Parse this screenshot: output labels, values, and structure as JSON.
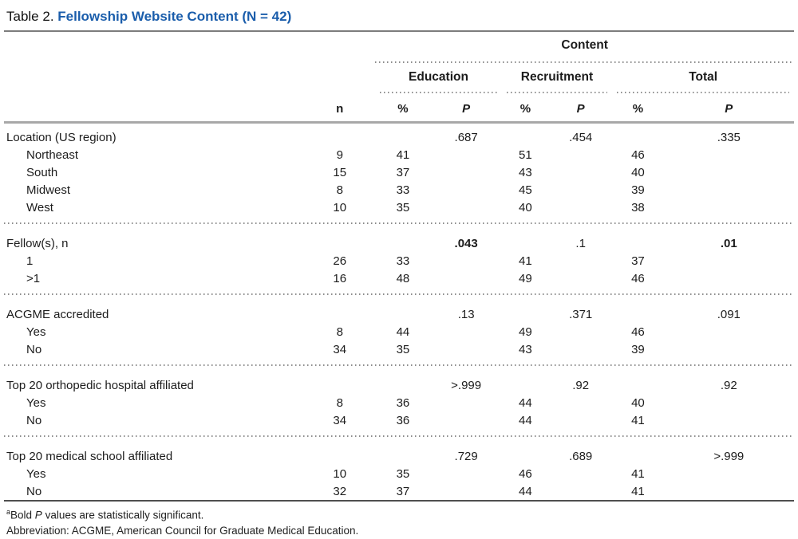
{
  "title": {
    "prefix": "Table 2. ",
    "main": "Fellowship Website Content (N = 42)",
    "accent_color": "#1a5dab"
  },
  "header": {
    "content_label": "Content",
    "group_labels": [
      "Education",
      "Recruitment",
      "Total"
    ],
    "col_n": "n",
    "col_pct": "%",
    "col_p": "P"
  },
  "sections": [
    {
      "label": "Location (US region)",
      "p_values": {
        "education": ".687",
        "recruitment": ".454",
        "total": ".335"
      },
      "p_bold": {
        "education": false,
        "recruitment": false,
        "total": false
      },
      "rows": [
        {
          "label": "Northeast",
          "n": "9",
          "education_pct": "41",
          "recruitment_pct": "51",
          "total_pct": "46"
        },
        {
          "label": "South",
          "n": "15",
          "education_pct": "37",
          "recruitment_pct": "43",
          "total_pct": "40"
        },
        {
          "label": "Midwest",
          "n": "8",
          "education_pct": "33",
          "recruitment_pct": "45",
          "total_pct": "39"
        },
        {
          "label": "West",
          "n": "10",
          "education_pct": "35",
          "recruitment_pct": "40",
          "total_pct": "38"
        }
      ]
    },
    {
      "label": "Fellow(s), n",
      "p_values": {
        "education": ".043",
        "recruitment": ".1",
        "total": ".01"
      },
      "p_bold": {
        "education": true,
        "recruitment": false,
        "total": true
      },
      "rows": [
        {
          "label": "1",
          "n": "26",
          "education_pct": "33",
          "recruitment_pct": "41",
          "total_pct": "37"
        },
        {
          "label": ">1",
          "n": "16",
          "education_pct": "48",
          "recruitment_pct": "49",
          "total_pct": "46"
        }
      ]
    },
    {
      "label": "ACGME accredited",
      "p_values": {
        "education": ".13",
        "recruitment": ".371",
        "total": ".091"
      },
      "p_bold": {
        "education": false,
        "recruitment": false,
        "total": false
      },
      "rows": [
        {
          "label": "Yes",
          "n": "8",
          "education_pct": "44",
          "recruitment_pct": "49",
          "total_pct": "46"
        },
        {
          "label": "No",
          "n": "34",
          "education_pct": "35",
          "recruitment_pct": "43",
          "total_pct": "39"
        }
      ]
    },
    {
      "label": "Top 20 orthopedic hospital affiliated",
      "p_values": {
        "education": ">.999",
        "recruitment": ".92",
        "total": ".92"
      },
      "p_bold": {
        "education": false,
        "recruitment": false,
        "total": false
      },
      "rows": [
        {
          "label": "Yes",
          "n": "8",
          "education_pct": "36",
          "recruitment_pct": "44",
          "total_pct": "40"
        },
        {
          "label": "No",
          "n": "34",
          "education_pct": "36",
          "recruitment_pct": "44",
          "total_pct": "41"
        }
      ]
    },
    {
      "label": "Top 20 medical school affiliated",
      "p_values": {
        "education": ".729",
        "recruitment": ".689",
        "total": ">.999"
      },
      "p_bold": {
        "education": false,
        "recruitment": false,
        "total": false
      },
      "rows": [
        {
          "label": "Yes",
          "n": "10",
          "education_pct": "35",
          "recruitment_pct": "46",
          "total_pct": "41"
        },
        {
          "label": "No",
          "n": "32",
          "education_pct": "37",
          "recruitment_pct": "44",
          "total_pct": "41"
        }
      ]
    }
  ],
  "footnotes": {
    "note_a_superscript": "a",
    "note_a_pre": "Bold ",
    "note_a_italic": "P",
    "note_a_post": " values are statistically significant.",
    "abbreviation": "Abbreviation: ACGME, American Council for Graduate Medical Education."
  }
}
